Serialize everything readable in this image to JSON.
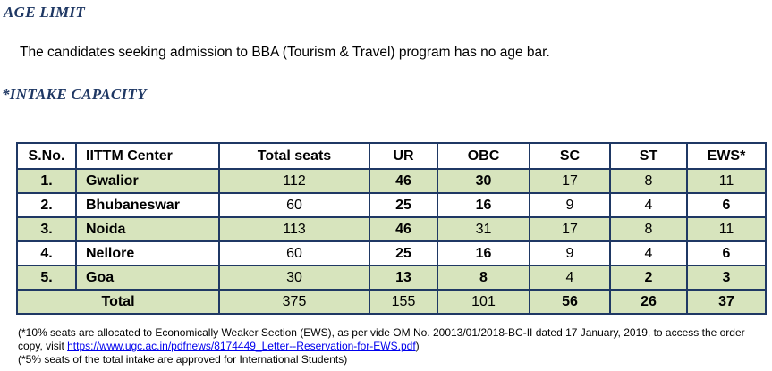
{
  "age_limit": {
    "heading": "AGE LIMIT",
    "text": "The candidates seeking admission to BBA (Tourism & Travel) program has no age bar."
  },
  "intake": {
    "heading": "*INTAKE CAPACITY",
    "columns": [
      "S.No.",
      "IITTM Center",
      "Total seats",
      "UR",
      "OBC",
      "SC",
      "ST",
      "EWS*"
    ],
    "rows": [
      {
        "sno": "1.",
        "center": "Gwalior",
        "total": "112",
        "ur": "46",
        "obc": "30",
        "sc": "17",
        "st": "8",
        "ews": "11"
      },
      {
        "sno": "2.",
        "center": "Bhubaneswar",
        "total": "60",
        "ur": "25",
        "obc": "16",
        "sc": "9",
        "st": "4",
        "ews": "6"
      },
      {
        "sno": "3.",
        "center": "Noida",
        "total": "113",
        "ur": "46",
        "obc": "31",
        "sc": "17",
        "st": "8",
        "ews": "11"
      },
      {
        "sno": "4.",
        "center": "Nellore",
        "total": "60",
        "ur": "25",
        "obc": "16",
        "sc": "9",
        "st": "4",
        "ews": "6"
      },
      {
        "sno": "5.",
        "center": "Goa",
        "total": "30",
        "ur": "13",
        "obc": "8",
        "sc": "4",
        "st": "2",
        "ews": "3"
      }
    ],
    "total_row": {
      "label": "Total",
      "total": "375",
      "ur": "155",
      "obc": "101",
      "sc": "56",
      "st": "26",
      "ews": "37"
    }
  },
  "notes": {
    "ews_note_prefix": "(*10% seats are allocated to Economically Weaker Section (EWS), as per vide OM No. 20013/01/2018-BC-II dated 17 January, 2019, to access the order copy, visit ",
    "ews_link": "https://www.ugc.ac.in/pdfnews/8174449_Letter--Reservation-for-EWS.pdf",
    "ews_note_suffix": ")",
    "intl_note": "(*5% seats of the total intake are approved for International Students)"
  },
  "colors": {
    "heading": "#1f3864",
    "band": "#d7e4bd",
    "border": "#1f3864"
  }
}
